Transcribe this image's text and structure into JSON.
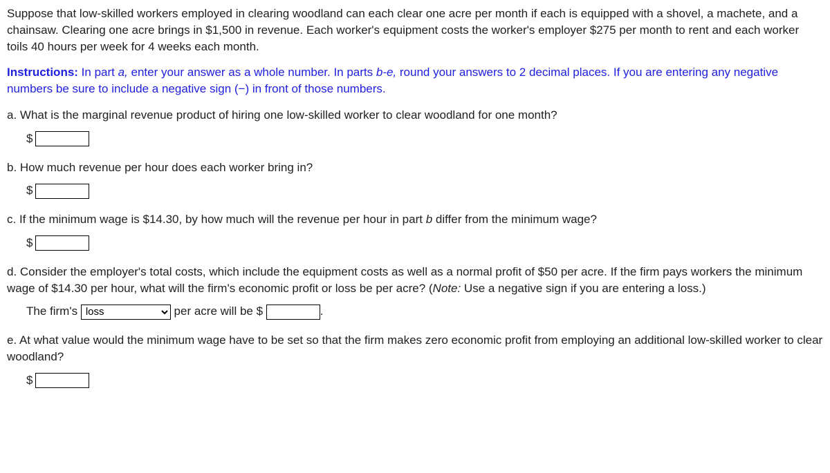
{
  "intro": "Suppose that low-skilled workers employed in clearing woodland can each clear one acre per month if each is equipped with a shovel, a machete, and a chainsaw. Clearing one acre brings in $1,500 in revenue. Each worker's equipment costs the worker's employer $275 per month to rent and each worker toils 40 hours per week for 4 weeks each month.",
  "instructions": {
    "label": "Instructions:",
    "part1": " In part ",
    "a": "a,",
    "part2": " enter your answer as a whole number. In parts ",
    "be": "b-e,",
    "part3": " round your answers to 2 decimal places. If you are entering any negative numbers be sure to include a negative sign (−) in front of those numbers."
  },
  "qa": {
    "text": "a. What is the marginal revenue product of hiring one low-skilled worker to clear woodland for one month?",
    "currency": "$"
  },
  "qb": {
    "text": "b. How much revenue per hour does each worker bring in?",
    "currency": "$"
  },
  "qc": {
    "part1": "c. If the minimum wage is $14.30, by how much will the revenue per hour in part ",
    "b": "b",
    "part2": " differ from the minimum wage?",
    "currency": "$"
  },
  "qd": {
    "part1": "d. Consider the employer's total costs, which include the equipment costs as well as a normal profit of $50 per acre. If the firm pays workers the minimum wage of $14.30 per hour, what will the firm's economic profit or loss be per acre? (",
    "note_label": "Note:",
    "part2": " Use a negative sign if you are entering a loss.)",
    "sentence_pre": "The firm's ",
    "dropdown_selected": "loss",
    "sentence_mid": " per acre will be $ ",
    "period": "."
  },
  "qe": {
    "text": "e. At what value would the minimum wage have to be set so that the firm makes zero economic profit from employing an additional low-skilled worker to clear woodland?",
    "currency": "$"
  }
}
